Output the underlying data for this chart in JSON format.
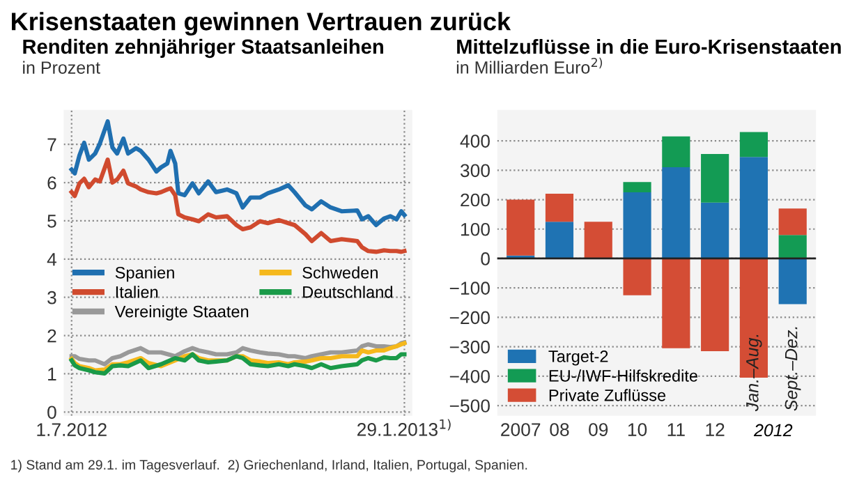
{
  "chart_data": [
    {
      "type": "line",
      "title": "Renditen zehnjähriger Staatsanleihen",
      "subtitle": "in Prozent",
      "annotations": [
        "Krisenstaaten gewinnen Vertrauen zurück",
        "1) Stand am 29.1. im Tagesverlauf.  2) Griechenland, Irland, Italien, Portugal, Spanien."
      ],
      "x": [
        "2012-07-01",
        "2012-07-03",
        "2012-07-06",
        "2012-07-09",
        "2012-07-12",
        "2012-07-16",
        "2012-07-19",
        "2012-07-24",
        "2012-07-27",
        "2012-07-30",
        "2012-08-03",
        "2012-08-06",
        "2012-08-11",
        "2012-08-14",
        "2012-08-19",
        "2012-08-24",
        "2012-08-27",
        "2012-08-31",
        "2012-09-02",
        "2012-09-05",
        "2012-09-07",
        "2012-09-11",
        "2012-09-16",
        "2012-09-20",
        "2012-09-26",
        "2012-10-01",
        "2012-10-08",
        "2012-10-14",
        "2012-10-18",
        "2012-10-23",
        "2012-10-29",
        "2012-11-03",
        "2012-11-10",
        "2012-11-16",
        "2012-11-20",
        "2012-11-27",
        "2012-12-01",
        "2012-12-07",
        "2012-12-13",
        "2012-12-20",
        "2012-12-30",
        "2013-01-02",
        "2013-01-06",
        "2013-01-11",
        "2013-01-16",
        "2013-01-20",
        "2013-01-24",
        "2013-01-27",
        "2013-01-29"
      ],
      "series": [
        {
          "name": "Spanien",
          "color": "#1f6fb0",
          "values": [
            6.34,
            6.24,
            6.71,
            7.04,
            6.6,
            6.76,
            7.02,
            7.6,
            6.92,
            6.76,
            7.15,
            6.76,
            6.9,
            6.83,
            6.6,
            6.29,
            6.4,
            6.5,
            6.83,
            6.5,
            5.72,
            5.67,
            5.98,
            5.72,
            6.03,
            5.75,
            5.82,
            5.72,
            5.35,
            5.61,
            5.61,
            5.72,
            5.82,
            5.93,
            5.75,
            5.4,
            5.3,
            5.51,
            5.35,
            5.25,
            5.27,
            5.04,
            5.12,
            4.89,
            5.06,
            5.12,
            5.04,
            5.25,
            5.15
          ]
        },
        {
          "name": "Italien",
          "color": "#d04a2e",
          "values": [
            5.75,
            5.65,
            5.98,
            6.1,
            5.88,
            6.08,
            6.03,
            6.6,
            6.0,
            6.08,
            6.31,
            5.98,
            5.9,
            5.82,
            5.75,
            5.72,
            5.75,
            5.82,
            5.85,
            5.67,
            5.17,
            5.09,
            5.04,
            4.99,
            5.17,
            5.09,
            5.12,
            4.89,
            4.78,
            4.83,
            4.99,
            4.94,
            5.02,
            4.94,
            4.89,
            4.65,
            4.47,
            4.68,
            4.47,
            4.52,
            4.47,
            4.31,
            4.21,
            4.19,
            4.23,
            4.21,
            4.21,
            4.19,
            4.21
          ]
        },
        {
          "name": "Vereinigte Staaten",
          "color": "#999999",
          "x": [
            "2012-07-01",
            "2012-07-03",
            "2012-07-06",
            "2012-07-12",
            "2012-07-16",
            "2012-07-22",
            "2012-07-27",
            "2012-08-01",
            "2012-08-06",
            "2012-08-14",
            "2012-08-19",
            "2012-08-27",
            "2012-09-05",
            "2012-09-11",
            "2012-09-16",
            "2012-09-20",
            "2012-09-26",
            "2012-10-01",
            "2012-10-08",
            "2012-10-14",
            "2012-10-18",
            "2012-10-23",
            "2012-10-29",
            "2012-11-03",
            "2012-11-10",
            "2012-11-16",
            "2012-11-20",
            "2012-11-27",
            "2012-12-01",
            "2012-12-07",
            "2012-12-13",
            "2012-12-20",
            "2012-12-30",
            "2013-01-02",
            "2013-01-06",
            "2013-01-11",
            "2013-01-16",
            "2013-01-20",
            "2013-01-24",
            "2013-01-27",
            "2013-01-29"
          ],
          "values": [
            1.46,
            1.46,
            1.39,
            1.35,
            1.35,
            1.25,
            1.41,
            1.46,
            1.56,
            1.67,
            1.56,
            1.56,
            1.46,
            1.59,
            1.67,
            1.61,
            1.56,
            1.51,
            1.51,
            1.56,
            1.67,
            1.61,
            1.56,
            1.53,
            1.51,
            1.46,
            1.46,
            1.41,
            1.46,
            1.51,
            1.56,
            1.56,
            1.61,
            1.72,
            1.77,
            1.72,
            1.72,
            1.7,
            1.72,
            1.8,
            1.82
          ]
        },
        {
          "name": "Schweden",
          "color": "#f5b81c",
          "x": [
            "2012-07-01",
            "2012-07-03",
            "2012-07-06",
            "2012-07-12",
            "2012-07-16",
            "2012-07-22",
            "2012-07-27",
            "2012-08-01",
            "2012-08-06",
            "2012-08-14",
            "2012-08-19",
            "2012-08-27",
            "2012-09-05",
            "2012-09-11",
            "2012-09-16",
            "2012-09-20",
            "2012-09-26",
            "2012-10-01",
            "2012-10-08",
            "2012-10-14",
            "2012-10-18",
            "2012-10-23",
            "2012-10-29",
            "2012-11-03",
            "2012-11-10",
            "2012-11-16",
            "2012-11-20",
            "2012-11-27",
            "2012-12-01",
            "2012-12-07",
            "2012-12-13",
            "2012-12-20",
            "2012-12-30",
            "2013-01-02",
            "2013-01-06",
            "2013-01-11",
            "2013-01-16",
            "2013-01-20",
            "2013-01-24",
            "2013-01-27",
            "2013-01-29"
          ],
          "values": [
            1.39,
            1.28,
            1.2,
            1.15,
            1.09,
            1.11,
            1.25,
            1.25,
            1.3,
            1.41,
            1.28,
            1.2,
            1.35,
            1.46,
            1.51,
            1.41,
            1.35,
            1.35,
            1.35,
            1.46,
            1.46,
            1.35,
            1.32,
            1.28,
            1.3,
            1.25,
            1.3,
            1.32,
            1.35,
            1.41,
            1.41,
            1.46,
            1.46,
            1.61,
            1.56,
            1.61,
            1.61,
            1.67,
            1.72,
            1.77,
            1.8
          ]
        },
        {
          "name": "Deutschland",
          "color": "#1a9a48",
          "x": [
            "2012-07-01",
            "2012-07-03",
            "2012-07-06",
            "2012-07-12",
            "2012-07-16",
            "2012-07-22",
            "2012-07-27",
            "2012-08-01",
            "2012-08-06",
            "2012-08-14",
            "2012-08-19",
            "2012-08-27",
            "2012-09-05",
            "2012-09-11",
            "2012-09-16",
            "2012-09-20",
            "2012-09-26",
            "2012-10-01",
            "2012-10-08",
            "2012-10-14",
            "2012-10-18",
            "2012-10-23",
            "2012-10-29",
            "2012-11-03",
            "2012-11-10",
            "2012-11-16",
            "2012-11-20",
            "2012-11-27",
            "2012-12-01",
            "2012-12-07",
            "2012-12-13",
            "2012-12-20",
            "2012-12-30",
            "2013-01-02",
            "2013-01-06",
            "2013-01-11",
            "2013-01-16",
            "2013-01-20",
            "2013-01-24",
            "2013-01-27",
            "2013-01-29"
          ],
          "values": [
            1.35,
            1.22,
            1.15,
            1.09,
            1.04,
            1.01,
            1.2,
            1.22,
            1.2,
            1.35,
            1.15,
            1.25,
            1.41,
            1.35,
            1.51,
            1.35,
            1.3,
            1.32,
            1.35,
            1.46,
            1.41,
            1.25,
            1.22,
            1.2,
            1.25,
            1.2,
            1.25,
            1.2,
            1.15,
            1.25,
            1.15,
            1.2,
            1.25,
            1.35,
            1.41,
            1.35,
            1.43,
            1.41,
            1.41,
            1.51,
            1.51
          ]
        }
      ],
      "xlim": [
        "2012-06-26",
        "2013-02-03"
      ],
      "xticks": [
        {
          "value": "2012-07-01",
          "label": "1.7.2012"
        },
        {
          "value": "2013-01-29",
          "label": "29.1.2013$^{1)}$"
        }
      ],
      "ylim": [
        -0.1,
        7.9
      ],
      "yticks": [
        0,
        1,
        2,
        3,
        4,
        5,
        6,
        7
      ],
      "grid": true,
      "legend": "center left",
      "line_style": "solid"
    },
    {
      "type": "bar",
      "stacked": true,
      "title": "Mittelzuflüsse in die Euro-Krisenstaaten",
      "subtitle": "in Milliarden Euro$^{2)}$",
      "categories": [
        "2007",
        "08",
        "09",
        "10",
        "11",
        "12",
        "Jan.–Aug.",
        "Sept.–Dez."
      ],
      "annotations": [
        "2012"
      ],
      "series": [
        {
          "name": "Target-2",
          "color": "#1f73b3",
          "values": [
            10,
            125,
            0,
            225,
            310,
            190,
            345,
            -155
          ]
        },
        {
          "name": "EU-/IWF-Hilfskredite",
          "color": "#139b54",
          "values": [
            0,
            0,
            0,
            35,
            105,
            165,
            85,
            80
          ]
        },
        {
          "name": "Private Zuflüsse",
          "color": "#d44d35",
          "values": [
            190,
            95,
            125,
            -125,
            -305,
            -315,
            -405,
            90
          ]
        }
      ],
      "ylim": [
        -535,
        505
      ],
      "yticks": [
        -500,
        -400,
        -300,
        -200,
        -100,
        0,
        100,
        200,
        300,
        400
      ],
      "grid": "y",
      "legend": "lower left"
    }
  ]
}
